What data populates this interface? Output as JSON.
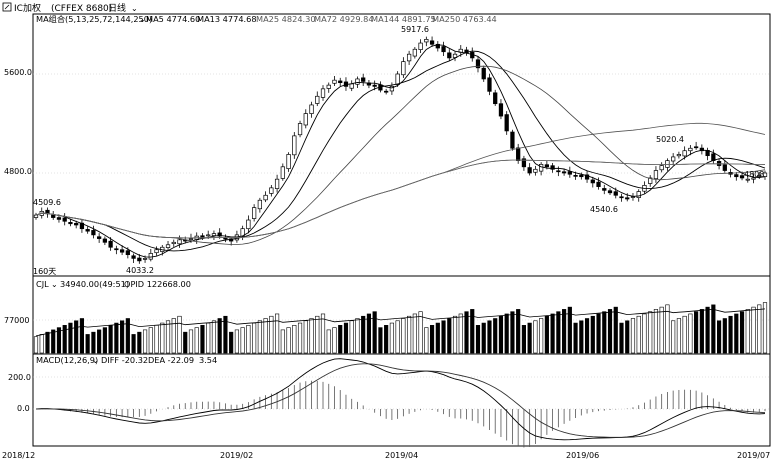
{
  "title_bar": {
    "symbol": "IC加权",
    "code": "(CFFEX 8680)",
    "period": "日线"
  },
  "ma_legend": [
    {
      "label": "MA组合(5,13,25,72,144,250)",
      "color": "#000000",
      "dropdown": true
    },
    {
      "label": "MA5 4774.60",
      "color": "#000000"
    },
    {
      "label": "MA13 4774.68",
      "color": "#000000"
    },
    {
      "label": "MA25 4824.30",
      "color": "#555555"
    },
    {
      "label": "MA72 4929.84",
      "color": "#555555"
    },
    {
      "label": "MA144 4891.75",
      "color": "#555555"
    },
    {
      "label": "MA250 4763.44",
      "color": "#555555"
    }
  ],
  "price_panel": {
    "y_ticks": [
      "5600.0",
      "4800.0"
    ],
    "annotations": [
      "4509.6",
      "4033.2",
      "5917.6",
      "5020.4",
      "4540.6",
      "4808"
    ],
    "period_note": "160天"
  },
  "volume_panel": {
    "legend": [
      "CJL",
      "34940.00(49:51)",
      "OPID 122668.00"
    ],
    "y_ticks": [
      "77000"
    ]
  },
  "macd_panel": {
    "legend": [
      "MACD(12,26,9)",
      "DIFF -20.32",
      "DEA -22.09",
      "3.54"
    ],
    "y_ticks": [
      "200.0",
      "0.0"
    ]
  },
  "x_axis": {
    "labels": [
      "2018/12",
      "2019/02",
      "2019/04",
      "2019/06",
      "2019/07"
    ]
  },
  "colors": {
    "up": "#ffffff",
    "down": "#000000",
    "grid": "#c8c8c8",
    "axis": "#000000"
  },
  "chart_data": {
    "type": "candlestick",
    "x": [
      "2018/12",
      "2019/02",
      "2019/04",
      "2019/06",
      "2019/07"
    ],
    "closes": [
      4460,
      4490,
      4470,
      4440,
      4425,
      4410,
      4390,
      4380,
      4350,
      4330,
      4300,
      4270,
      4240,
      4200,
      4180,
      4160,
      4140,
      4110,
      4090,
      4110,
      4150,
      4180,
      4200,
      4220,
      4240,
      4260,
      4250,
      4270,
      4290,
      4280,
      4300,
      4310,
      4290,
      4270,
      4250,
      4300,
      4350,
      4420,
      4520,
      4580,
      4620,
      4680,
      4750,
      4850,
      4950,
      5100,
      5200,
      5280,
      5350,
      5420,
      5480,
      5510,
      5550,
      5530,
      5500,
      5520,
      5560,
      5540,
      5510,
      5500,
      5470,
      5460,
      5500,
      5600,
      5700,
      5760,
      5800,
      5850,
      5880,
      5840,
      5810,
      5780,
      5730,
      5760,
      5800,
      5770,
      5730,
      5650,
      5560,
      5460,
      5360,
      5260,
      5140,
      5000,
      4900,
      4850,
      4800,
      4830,
      4870,
      4850,
      4830,
      4810,
      4800,
      4790,
      4780,
      4770,
      4750,
      4720,
      4690,
      4660,
      4640,
      4620,
      4600,
      4590,
      4610,
      4650,
      4700,
      4760,
      4820,
      4860,
      4900,
      4930,
      4950,
      4980,
      5000,
      5010,
      4980,
      4940,
      4900,
      4860,
      4820,
      4790,
      4770,
      4760,
      4750,
      4760,
      4780,
      4800
    ],
    "ma_last": {
      "MA5": 4774.6,
      "MA13": 4774.68,
      "MA25": 4824.3,
      "MA72": 4929.84,
      "MA144": 4891.75,
      "MA250": 4763.44
    },
    "macd_last": {
      "DIFF": -20.32,
      "DEA": -22.09,
      "MACD": 3.54
    },
    "extremes": {
      "high": 5917.6,
      "low": 4033.2,
      "local_high": 5020.4,
      "local_low": 4540.6,
      "first_label": 4509.6,
      "last_label": 4808
    }
  }
}
